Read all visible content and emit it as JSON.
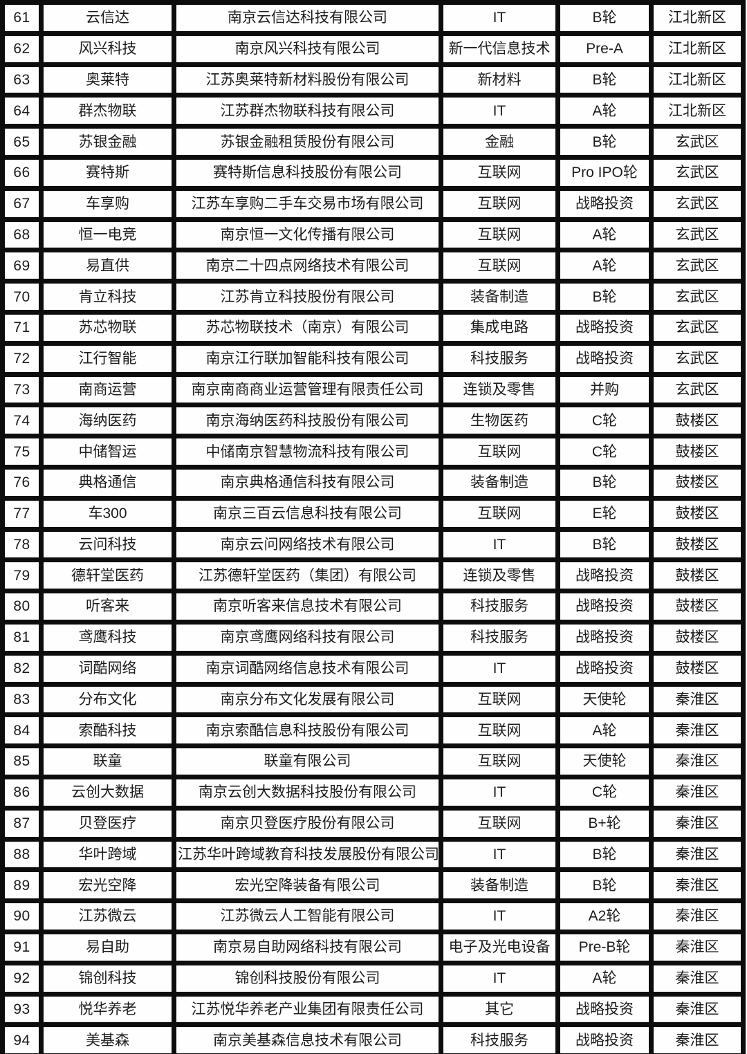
{
  "table": {
    "rows": [
      {
        "no": "61",
        "short_name": "云信达",
        "full_name": "南京云信达科技有限公司",
        "industry": "IT",
        "round": "B轮",
        "district": "江北新区"
      },
      {
        "no": "62",
        "short_name": "风兴科技",
        "full_name": "南京风兴科技有限公司",
        "industry": "新一代信息技术",
        "round": "Pre-A",
        "district": "江北新区"
      },
      {
        "no": "63",
        "short_name": "奥莱特",
        "full_name": "江苏奥莱特新材料股份有限公司",
        "industry": "新材料",
        "round": "B轮",
        "district": "江北新区"
      },
      {
        "no": "64",
        "short_name": "群杰物联",
        "full_name": "江苏群杰物联科技有限公司",
        "industry": "IT",
        "round": "A轮",
        "district": "江北新区"
      },
      {
        "no": "65",
        "short_name": "苏银金融",
        "full_name": "苏银金融租赁股份有限公司",
        "industry": "金融",
        "round": "B轮",
        "district": "玄武区"
      },
      {
        "no": "66",
        "short_name": "赛特斯",
        "full_name": "赛特斯信息科技股份有限公司",
        "industry": "互联网",
        "round": "Pro IPO轮",
        "district": "玄武区"
      },
      {
        "no": "67",
        "short_name": "车享购",
        "full_name": "江苏车享购二手车交易市场有限公司",
        "industry": "互联网",
        "round": "战略投资",
        "district": "玄武区"
      },
      {
        "no": "68",
        "short_name": "恒一电竞",
        "full_name": "南京恒一文化传播有限公司",
        "industry": "互联网",
        "round": "A轮",
        "district": "玄武区"
      },
      {
        "no": "69",
        "short_name": "易直供",
        "full_name": "南京二十四点网络技术有限公司",
        "industry": "互联网",
        "round": "A轮",
        "district": "玄武区"
      },
      {
        "no": "70",
        "short_name": "肯立科技",
        "full_name": "江苏肯立科技股份有限公司",
        "industry": "装备制造",
        "round": "B轮",
        "district": "玄武区"
      },
      {
        "no": "71",
        "short_name": "苏芯物联",
        "full_name": "苏芯物联技术（南京）有限公司",
        "industry": "集成电路",
        "round": "战略投资",
        "district": "玄武区"
      },
      {
        "no": "72",
        "short_name": "江行智能",
        "full_name": "南京江行联加智能科技有限公司",
        "industry": "科技服务",
        "round": "战略投资",
        "district": "玄武区"
      },
      {
        "no": "73",
        "short_name": "南商运营",
        "full_name": "南京南商商业运营管理有限责任公司",
        "industry": "连锁及零售",
        "round": "并购",
        "district": "玄武区"
      },
      {
        "no": "74",
        "short_name": "海纳医药",
        "full_name": "南京海纳医药科技股份有限公司",
        "industry": "生物医药",
        "round": "C轮",
        "district": "鼓楼区"
      },
      {
        "no": "75",
        "short_name": "中储智运",
        "full_name": "中储南京智慧物流科技有限公司",
        "industry": "互联网",
        "round": "C轮",
        "district": "鼓楼区"
      },
      {
        "no": "76",
        "short_name": "典格通信",
        "full_name": "南京典格通信科技有限公司",
        "industry": "装备制造",
        "round": "B轮",
        "district": "鼓楼区"
      },
      {
        "no": "77",
        "short_name": "车300",
        "full_name": "南京三百云信息科技有限公司",
        "industry": "互联网",
        "round": "E轮",
        "district": "鼓楼区"
      },
      {
        "no": "78",
        "short_name": "云问科技",
        "full_name": "南京云问网络技术有限公司",
        "industry": "IT",
        "round": "B轮",
        "district": "鼓楼区"
      },
      {
        "no": "79",
        "short_name": "德轩堂医药",
        "full_name": "江苏德轩堂医药（集团）有限公司",
        "industry": "连锁及零售",
        "round": "战略投资",
        "district": "鼓楼区"
      },
      {
        "no": "80",
        "short_name": "听客来",
        "full_name": "南京听客来信息技术有限公司",
        "industry": "科技服务",
        "round": "战略投资",
        "district": "鼓楼区"
      },
      {
        "no": "81",
        "short_name": "鸢鹰科技",
        "full_name": "南京鸢鹰网络科技有限公司",
        "industry": "科技服务",
        "round": "战略投资",
        "district": "鼓楼区"
      },
      {
        "no": "82",
        "short_name": "词酷网络",
        "full_name": "南京词酷网络信息技术有限公司",
        "industry": "IT",
        "round": "战略投资",
        "district": "鼓楼区"
      },
      {
        "no": "83",
        "short_name": "分布文化",
        "full_name": "南京分布文化发展有限公司",
        "industry": "互联网",
        "round": "天使轮",
        "district": "秦淮区"
      },
      {
        "no": "84",
        "short_name": "索酷科技",
        "full_name": "南京索酷信息科技股份有限公司",
        "industry": "互联网",
        "round": "A轮",
        "district": "秦淮区"
      },
      {
        "no": "85",
        "short_name": "联童",
        "full_name": "联童有限公司",
        "industry": "互联网",
        "round": "天使轮",
        "district": "秦淮区"
      },
      {
        "no": "86",
        "short_name": "云创大数据",
        "full_name": "南京云创大数据科技股份有限公司",
        "industry": "IT",
        "round": "C轮",
        "district": "秦淮区"
      },
      {
        "no": "87",
        "short_name": "贝登医疗",
        "full_name": "南京贝登医疗股份有限公司",
        "industry": "互联网",
        "round": "B+轮",
        "district": "秦淮区"
      },
      {
        "no": "88",
        "short_name": "华叶跨域",
        "full_name": "江苏华叶跨域教育科技发展股份有限公司",
        "industry": "IT",
        "round": "B轮",
        "district": "秦淮区"
      },
      {
        "no": "89",
        "short_name": "宏光空降",
        "full_name": "宏光空降装备有限公司",
        "industry": "装备制造",
        "round": "B轮",
        "district": "秦淮区"
      },
      {
        "no": "90",
        "short_name": "江苏微云",
        "full_name": "江苏微云人工智能有限公司",
        "industry": "IT",
        "round": "A2轮",
        "district": "秦淮区"
      },
      {
        "no": "91",
        "short_name": "易自助",
        "full_name": "南京易自助网络科技有限公司",
        "industry": "电子及光电设备",
        "round": "Pre-B轮",
        "district": "秦淮区"
      },
      {
        "no": "92",
        "short_name": "锦创科技",
        "full_name": "锦创科技股份有限公司",
        "industry": "IT",
        "round": "A轮",
        "district": "秦淮区"
      },
      {
        "no": "93",
        "short_name": "悦华养老",
        "full_name": "江苏悦华养老产业集团有限责任公司",
        "industry": "其它",
        "round": "战略投资",
        "district": "秦淮区"
      },
      {
        "no": "94",
        "short_name": "美基森",
        "full_name": "南京美基森信息技术有限公司",
        "industry": "科技服务",
        "round": "战略投资",
        "district": "秦淮区"
      }
    ]
  }
}
